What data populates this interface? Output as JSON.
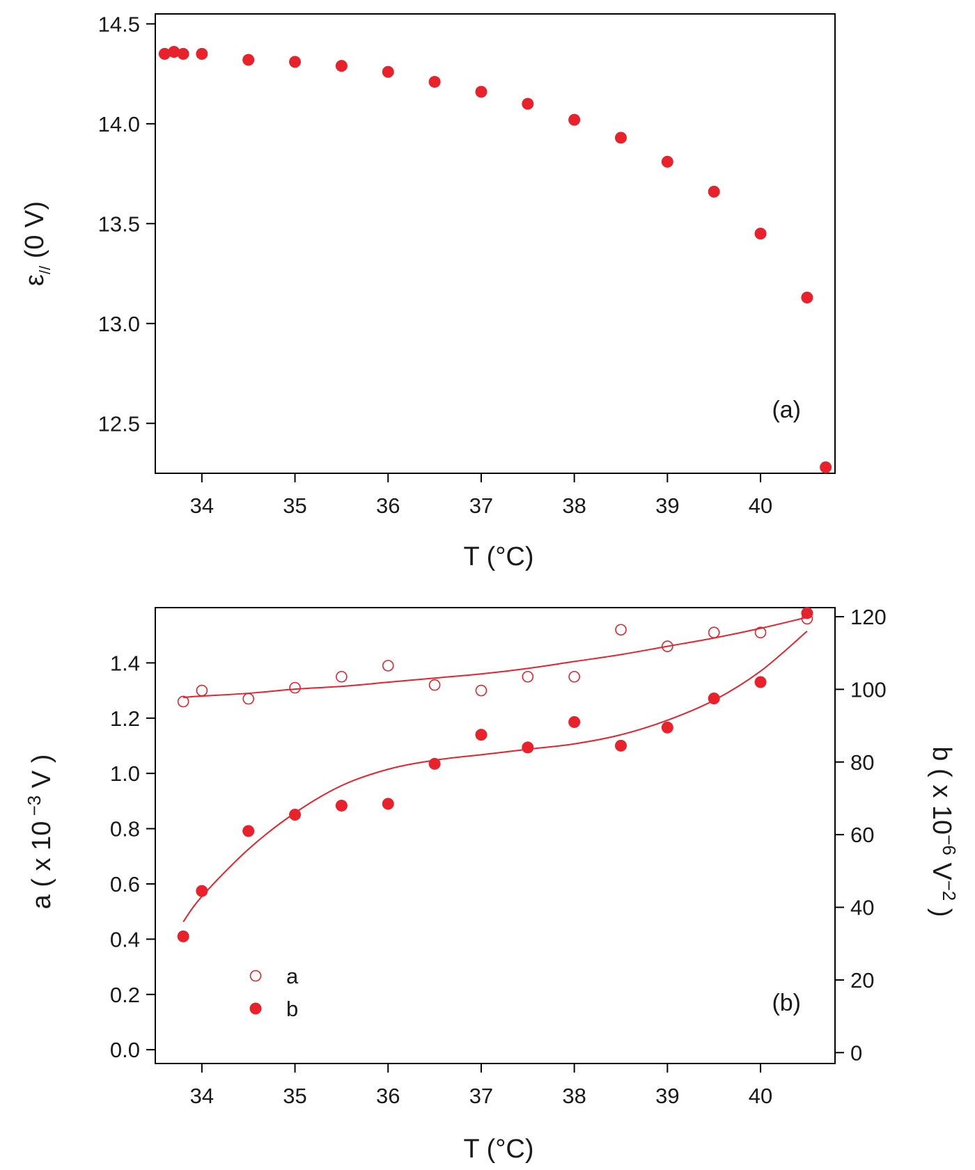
{
  "chart_data": [
    {
      "id": "a",
      "type": "scatter",
      "panel_label": "(a)",
      "xlabel": "T (°C)",
      "ylabel_main": "ε",
      "ylabel_sub": "//",
      "ylabel_rest": " (0 V)",
      "xlim": [
        33.5,
        40.8
      ],
      "ylim": [
        12.25,
        14.55
      ],
      "xticks": [
        34,
        35,
        36,
        37,
        38,
        39,
        40
      ],
      "yticks": [
        12.5,
        13.0,
        13.5,
        14.0,
        14.5
      ],
      "ytick_labels": [
        "12.5",
        "13.0",
        "13.5",
        "14.0",
        "14.5"
      ],
      "color": "#e8212b",
      "series": [
        {
          "name": "ε// (0 V)",
          "marker": "filled-circle",
          "x": [
            33.6,
            33.7,
            33.8,
            34.0,
            34.5,
            35.0,
            35.5,
            36.0,
            36.5,
            37.0,
            37.5,
            38.0,
            38.5,
            39.0,
            39.5,
            40.0,
            40.5,
            40.7
          ],
          "y": [
            14.35,
            14.36,
            14.35,
            14.35,
            14.32,
            14.31,
            14.29,
            14.26,
            14.21,
            14.16,
            14.1,
            14.02,
            13.93,
            13.81,
            13.66,
            13.45,
            13.13,
            12.28
          ]
        }
      ]
    },
    {
      "id": "b",
      "type": "scatter",
      "panel_label": "(b)",
      "xlabel": "T (°C)",
      "ylabel_left": "a ( x 10",
      "ylabel_left_sup": " −3",
      "ylabel_left_rest": " V )",
      "ylabel_right": "b ( x 10",
      "ylabel_right_sup": "−6",
      "ylabel_right_mid": " V",
      "ylabel_right_sup2": "−2",
      "ylabel_right_rest": " )",
      "xlim": [
        33.5,
        40.8
      ],
      "ylim_left": [
        -0.05,
        1.6
      ],
      "ylim_right": [
        -3.0,
        122.5
      ],
      "xticks": [
        34,
        35,
        36,
        37,
        38,
        39,
        40
      ],
      "yticks_left": [
        0.0,
        0.2,
        0.4,
        0.6,
        0.8,
        1.0,
        1.2,
        1.4
      ],
      "ytick_labels_left": [
        "0.0",
        "0.2",
        "0.4",
        "0.6",
        "0.8",
        "1.0",
        "1.2",
        "1.4"
      ],
      "yticks_right": [
        0,
        20,
        40,
        60,
        80,
        100,
        120
      ],
      "ytick_labels_right": [
        "0",
        "20",
        "40",
        "60",
        "80",
        "100",
        "120"
      ],
      "color": "#e8212b",
      "legend": [
        {
          "label": "a",
          "marker": "open-circle"
        },
        {
          "label": "b",
          "marker": "filled-circle"
        }
      ],
      "series": [
        {
          "name": "a",
          "axis": "left",
          "marker": "open-circle",
          "x": [
            33.8,
            34.0,
            34.5,
            35.0,
            35.5,
            36.0,
            36.5,
            37.0,
            37.5,
            38.0,
            38.5,
            39.0,
            39.5,
            40.0,
            40.5
          ],
          "y": [
            1.26,
            1.3,
            1.27,
            1.31,
            1.35,
            1.39,
            1.32,
            1.3,
            1.35,
            1.35,
            1.52,
            1.46,
            1.51,
            1.51,
            1.56
          ]
        },
        {
          "name": "b",
          "axis": "right",
          "marker": "filled-circle",
          "x": [
            33.8,
            34.0,
            34.5,
            35.0,
            35.5,
            36.0,
            36.5,
            37.0,
            37.5,
            38.0,
            38.5,
            39.0,
            39.5,
            40.0,
            40.5
          ],
          "y": [
            32,
            44.5,
            61,
            65.5,
            68,
            68.5,
            79.5,
            87.5,
            84,
            91,
            84.5,
            89.5,
            97.5,
            102,
            121
          ]
        }
      ],
      "fits": [
        {
          "name": "a fit",
          "axis": "left",
          "x": [
            33.8,
            34.0,
            34.5,
            35.0,
            35.5,
            36.0,
            36.5,
            37.0,
            37.5,
            38.0,
            38.5,
            39.0,
            39.5,
            40.0,
            40.5
          ],
          "y": [
            1.275,
            1.28,
            1.29,
            1.305,
            1.315,
            1.33,
            1.345,
            1.36,
            1.38,
            1.405,
            1.43,
            1.46,
            1.49,
            1.525,
            1.565
          ]
        },
        {
          "name": "b fit",
          "axis": "right",
          "x": [
            33.8,
            34.0,
            34.5,
            35.0,
            35.5,
            36.0,
            36.5,
            37.0,
            37.5,
            38.0,
            38.5,
            39.0,
            39.5,
            40.0,
            40.5
          ],
          "y": [
            36,
            43,
            56,
            66,
            73.5,
            78,
            80.5,
            82,
            83.5,
            85,
            87.5,
            91.5,
            97,
            105,
            116
          ]
        }
      ]
    }
  ]
}
